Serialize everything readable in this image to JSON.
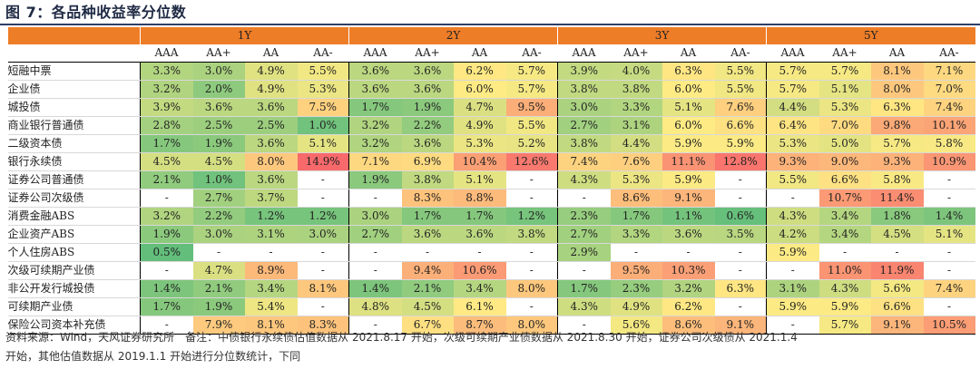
{
  "title": "图 7：各品种收益率分位数",
  "periods": [
    "1Y",
    "2Y",
    "3Y",
    "5Y"
  ],
  "ratings": [
    "AAA",
    "AA+",
    "AA",
    "AA-"
  ],
  "rows": [
    {
      "label": "短融中票",
      "values": [
        "3.3%",
        "3.0%",
        "4.9%",
        "5.5%",
        "3.6%",
        "3.6%",
        "6.2%",
        "5.7%",
        "3.9%",
        "4.0%",
        "6.3%",
        "5.5%",
        "5.7%",
        "5.7%",
        "8.1%",
        "7.1%"
      ]
    },
    {
      "label": "企业债",
      "values": [
        "3.2%",
        "2.0%",
        "4.9%",
        "5.3%",
        "3.6%",
        "3.6%",
        "6.0%",
        "5.7%",
        "3.8%",
        "3.8%",
        "6.0%",
        "5.5%",
        "5.7%",
        "5.1%",
        "8.0%",
        "7.0%"
      ]
    },
    {
      "label": "城投债",
      "values": [
        "3.9%",
        "3.6%",
        "3.6%",
        "7.5%",
        "1.7%",
        "1.9%",
        "4.7%",
        "9.5%",
        "3.0%",
        "3.3%",
        "5.1%",
        "7.6%",
        "4.4%",
        "5.3%",
        "6.3%",
        "7.4%"
      ]
    },
    {
      "label": "商业银行普通债",
      "values": [
        "2.8%",
        "2.5%",
        "2.5%",
        "1.0%",
        "3.2%",
        "2.2%",
        "4.9%",
        "5.5%",
        "2.7%",
        "3.1%",
        "6.0%",
        "6.6%",
        "6.4%",
        "7.0%",
        "9.8%",
        "10.1%"
      ]
    },
    {
      "label": "二级资本债",
      "values": [
        "1.7%",
        "1.9%",
        "3.6%",
        "5.1%",
        "3.2%",
        "3.6%",
        "5.3%",
        "5.2%",
        "3.8%",
        "4.4%",
        "5.9%",
        "5.9%",
        "5.3%",
        "5.0%",
        "5.7%",
        "5.8%"
      ]
    },
    {
      "label": "银行永续债",
      "values": [
        "4.5%",
        "4.5%",
        "8.0%",
        "14.9%",
        "7.1%",
        "6.9%",
        "10.4%",
        "12.6%",
        "7.4%",
        "7.6%",
        "11.1%",
        "12.8%",
        "9.3%",
        "9.0%",
        "9.3%",
        "10.9%"
      ]
    },
    {
      "label": "证券公司普通债",
      "values": [
        "2.1%",
        "1.0%",
        "3.6%",
        "-",
        "1.9%",
        "3.8%",
        "5.1%",
        "-",
        "4.3%",
        "5.3%",
        "5.9%",
        "-",
        "5.5%",
        "6.6%",
        "5.8%",
        "-"
      ]
    },
    {
      "label": "证券公司次级债",
      "values": [
        "-",
        "2.7%",
        "3.7%",
        "-",
        "-",
        "8.3%",
        "8.8%",
        "-",
        "-",
        "8.6%",
        "9.1%",
        "-",
        "-",
        "10.7%",
        "11.4%",
        "-"
      ]
    },
    {
      "label": "消费金融ABS",
      "values": [
        "3.2%",
        "2.2%",
        "1.2%",
        "1.2%",
        "3.0%",
        "1.7%",
        "1.7%",
        "1.2%",
        "2.3%",
        "1.7%",
        "1.1%",
        "0.6%",
        "4.3%",
        "3.4%",
        "1.8%",
        "1.4%"
      ]
    },
    {
      "label": "企业资产ABS",
      "values": [
        "1.9%",
        "3.0%",
        "3.1%",
        "3.0%",
        "2.7%",
        "3.6%",
        "3.6%",
        "3.8%",
        "2.7%",
        "3.3%",
        "3.6%",
        "3.5%",
        "4.2%",
        "3.4%",
        "4.5%",
        "5.1%"
      ]
    },
    {
      "label": "个人住房ABS",
      "values": [
        "0.5%",
        "-",
        "-",
        "-",
        "-",
        "-",
        "-",
        "-",
        "2.9%",
        "-",
        "-",
        "-",
        "5.9%",
        "-",
        "-",
        "-"
      ]
    },
    {
      "label": "次级可续期产业债",
      "values": [
        "-",
        "4.7%",
        "8.9%",
        "-",
        "-",
        "9.4%",
        "10.6%",
        "-",
        "-",
        "9.5%",
        "10.3%",
        "-",
        "-",
        "11.0%",
        "11.9%",
        "-"
      ]
    },
    {
      "label": "非公开发行城投债",
      "values": [
        "1.4%",
        "2.1%",
        "3.4%",
        "8.1%",
        "1.4%",
        "2.1%",
        "3.4%",
        "8.0%",
        "1.7%",
        "2.3%",
        "3.2%",
        "6.3%",
        "3.1%",
        "4.3%",
        "5.6%",
        "7.4%"
      ]
    },
    {
      "label": "可续期产业债",
      "values": [
        "1.7%",
        "1.9%",
        "5.4%",
        "-",
        "4.8%",
        "4.5%",
        "6.1%",
        "-",
        "4.3%",
        "4.9%",
        "6.2%",
        "-",
        "5.9%",
        "5.9%",
        "6.6%",
        "-"
      ]
    },
    {
      "label": "保险公司资本补充债",
      "values": [
        "-",
        "7.9%",
        "8.1%",
        "8.3%",
        "-",
        "6.7%",
        "8.7%",
        "8.0%",
        "-",
        "5.6%",
        "8.6%",
        "9.1%",
        "-",
        "5.7%",
        "9.1%",
        "10.5%"
      ]
    }
  ],
  "note_line1": "资料来源：Wind，天风证券研究所　备注：中债银行永续债估值数据从 2021.8.17 开始，次级可续期产业债数据从 2021.8.30 开始，证券公司次级债从 2021.1.4",
  "note_line2": "开始，其他估值数据从 2019.1.1 开始进行分位数统计，下同",
  "colors": {
    "header": "#ee7d27",
    "low": "#63be7b",
    "mid": "#ffeb84",
    "high": "#f8696b"
  }
}
